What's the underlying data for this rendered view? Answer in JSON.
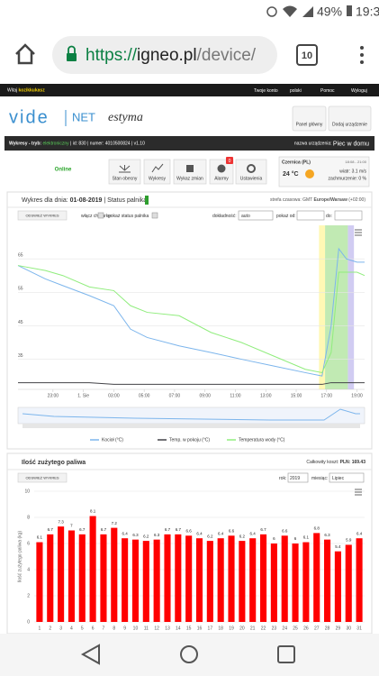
{
  "status_bar": {
    "battery": "49%",
    "time": "19:31"
  },
  "browser": {
    "url_scheme": "https://",
    "url_host": "igneo.pl",
    "url_path": "/device/",
    "tabs": "10"
  },
  "site_header": {
    "greeting": "Witaj",
    "user": "kozikkukasz",
    "links": [
      "Twoje konto",
      "polski",
      "Pomoc",
      "Wyloguj"
    ]
  },
  "logo": {
    "brand": "vide",
    "net": "NET",
    "partner": "estyma"
  },
  "top_buttons": [
    "Panel główny",
    "Dodaj urządzenie"
  ],
  "device_bar": {
    "left": "Wykresy - tryb:",
    "mode": "elektroniczny",
    "info": "| id: 830 | numer: 4010500824 | v1.10",
    "name_label": "nazwa urządzenia:",
    "name": "Piec w domu"
  },
  "toolbar": {
    "status": "Online",
    "buttons": [
      "Stan obecny",
      "Wykresy",
      "Wykaz zmian",
      "Alarmy",
      "Ustawienia"
    ],
    "alarm_count": "0"
  },
  "weather": {
    "place": "Czernica (PL)",
    "hours": "18:08 - 21:00",
    "temp": "24 °C",
    "wind": "wiatr: 3.1 m/s",
    "clouds": "zachmurzenie: 0 %"
  },
  "panel1": {
    "title_prefix": "Wykres dla dnia:",
    "date": "01-08-2019",
    "status_label": "| Status palnika:",
    "timezone_label": "strefa czasowa: GMT",
    "timezone": "Europe/Warsaw",
    "offset": "(+02:00)",
    "refresh": "ODSWIEŻ WYKRES",
    "tooltip": "włącz chmurkę",
    "show_status": "pokaż status palnika",
    "precision_label": "dokładność:",
    "precision": "auto",
    "from_label": "pokaż od:",
    "to_label": "do:"
  },
  "panel2": {
    "title": "Ilość zużytego paliwa",
    "cost_label": "Całkowity koszt:",
    "cost": "PLN: 169.43",
    "refresh": "ODSWIEŻ WYKRES",
    "year_label": "rok:",
    "year": "2019",
    "month_label": "miesiąc:",
    "month": "Lipiec"
  },
  "chart_data": [
    {
      "type": "line",
      "x": [
        -3.3,
        -1.5,
        -0.35,
        1.4,
        3.0,
        4.1,
        5.2,
        7.3,
        9.4,
        11.4,
        13.5,
        15.6,
        16.7,
        17.3,
        17.8,
        18.3,
        19.0,
        19.5
      ],
      "series": [
        {
          "name": "Kocioł (°C)",
          "color": "#7cb5ec",
          "values": [
            63,
            59,
            57,
            54,
            51,
            44,
            41.5,
            39,
            37,
            35,
            33,
            31,
            30,
            45,
            68,
            65,
            64,
            64
          ]
        },
        {
          "name": "Temp. w pokoju (°C)",
          "color": "#434348",
          "values": [
            28,
            28,
            28,
            28,
            27.5,
            27.5,
            27.5,
            27.5,
            27.5,
            27.5,
            27.5,
            27.5,
            27.5,
            28,
            28,
            28,
            28,
            28
          ]
        },
        {
          "name": "Temperatura wody (°C)",
          "color": "#90ed7d",
          "values": [
            63,
            61.5,
            60,
            56.6,
            55.5,
            51,
            49,
            48,
            43,
            40,
            36,
            32,
            31,
            37,
            61,
            61,
            61,
            60
          ]
        }
      ],
      "status_bands": [
        {
          "from": 16.5,
          "to": 16.9,
          "color": "#fff7a8"
        },
        {
          "from": 16.9,
          "to": 18.4,
          "color": "#b6e6a6"
        },
        {
          "from": 18.4,
          "to": 18.8,
          "color": "#c9c3f0"
        }
      ],
      "xlim": [
        -3.3,
        19.5
      ],
      "xticks": [
        {
          "value": -1,
          "label": "23:00"
        },
        {
          "value": 1,
          "label": "1. Sie"
        },
        {
          "value": 3,
          "label": "03:00"
        },
        {
          "value": 5,
          "label": "05:00"
        },
        {
          "value": 7,
          "label": "07:00"
        },
        {
          "value": 9,
          "label": "09:00"
        },
        {
          "value": 11,
          "label": "11:00"
        },
        {
          "value": 13,
          "label": "13:00"
        },
        {
          "value": 15,
          "label": "15:00"
        },
        {
          "value": 17,
          "label": "17:00"
        },
        {
          "value": 19,
          "label": "19:00"
        }
      ],
      "ylim": [
        26,
        75
      ],
      "yticks": [
        35,
        45,
        55,
        65
      ],
      "grid": true,
      "legend": "bottom"
    },
    {
      "type": "bar",
      "y_label": "Ilość zużytego paliwa (kg)",
      "categories": [
        "1",
        "2",
        "3",
        "4",
        "5",
        "6",
        "7",
        "8",
        "9",
        "10",
        "11",
        "12",
        "13",
        "14",
        "15",
        "16",
        "17",
        "18",
        "19",
        "20",
        "21",
        "22",
        "23",
        "24",
        "25",
        "26",
        "27",
        "28",
        "29",
        "30",
        "31"
      ],
      "values": [
        6.1,
        6.7,
        7.3,
        7.0,
        6.7,
        8.1,
        6.7,
        7.2,
        6.4,
        6.3,
        6.2,
        6.3,
        6.7,
        6.7,
        6.6,
        6.4,
        6.2,
        6.4,
        6.6,
        6.2,
        6.4,
        6.7,
        6.0,
        6.6,
        6.0,
        6.1,
        6.8,
        6.3,
        5.4,
        5.9,
        6.4
      ],
      "value_labels": [
        "6.1",
        "6.7",
        "7.3",
        "7",
        "6.7",
        "8.1",
        "6.7",
        "7.2",
        "6.4",
        "6.3",
        "6.2",
        "6.3",
        "6.7",
        "6.7",
        "6.6",
        "6.4",
        "6.2",
        "6.4",
        "6.6",
        "6.2",
        "6.4",
        "6.7",
        "6",
        "6.6",
        "6",
        "6.1",
        "6.8",
        "6.3",
        "5.4",
        "5.9",
        "6.4"
      ],
      "color": "#ff0000",
      "ylim": [
        0,
        10
      ],
      "yticks": [
        0,
        2,
        4,
        6,
        8,
        10
      ],
      "grid": true
    }
  ]
}
